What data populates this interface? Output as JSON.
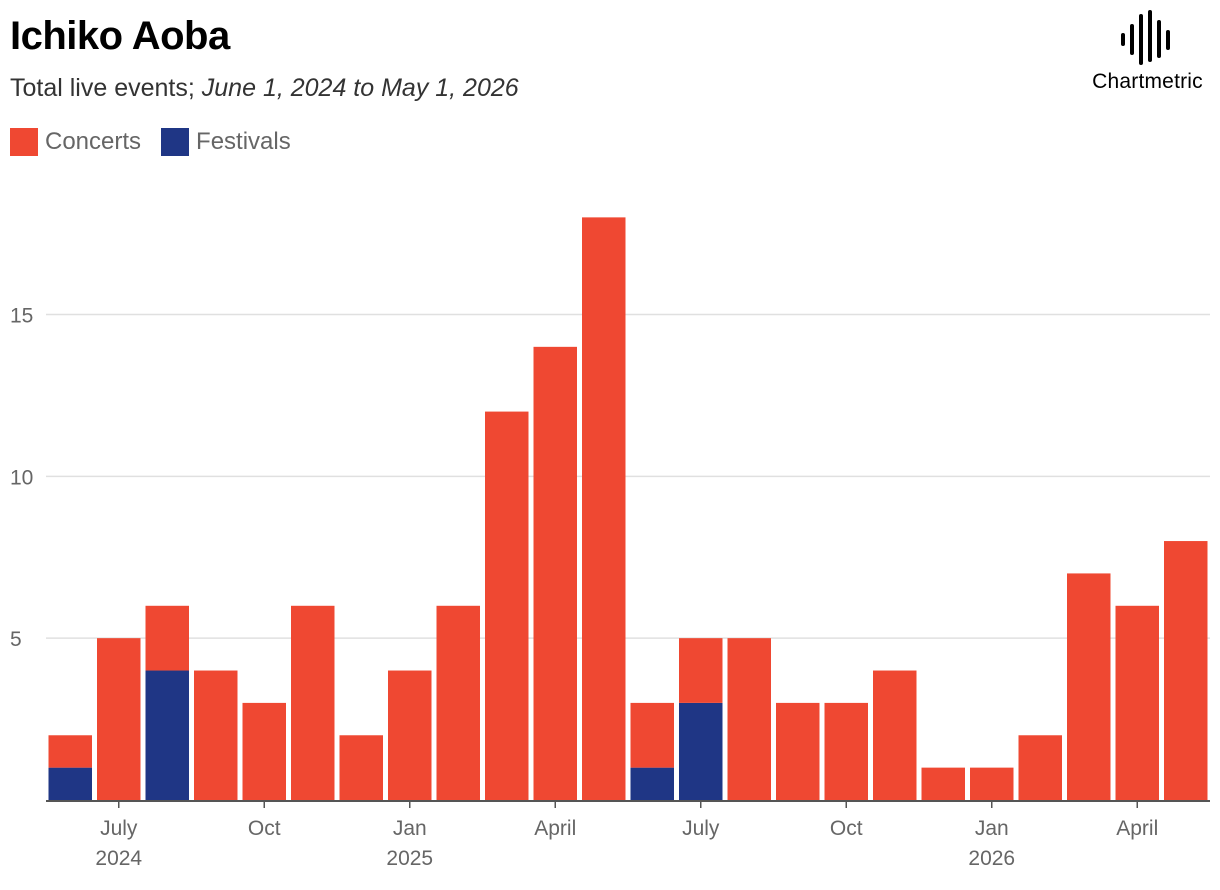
{
  "chart_data": {
    "type": "bar",
    "stacked": true,
    "title": "Ichiko Aoba",
    "subtitle_prefix": "Total live events;",
    "subtitle_range": "June 1, 2024 to May 1, 2026",
    "categories": [
      "Jun 2024",
      "Jul 2024",
      "Aug 2024",
      "Sep 2024",
      "Oct 2024",
      "Nov 2024",
      "Dec 2024",
      "Jan 2025",
      "Feb 2025",
      "Mar 2025",
      "Apr 2025",
      "May 2025",
      "Jun 2025",
      "Jul 2025",
      "Aug 2025",
      "Sep 2025",
      "Oct 2025",
      "Nov 2025",
      "Dec 2025",
      "Jan 2026",
      "Feb 2026",
      "Mar 2026",
      "Apr 2026",
      "May 2026"
    ],
    "series": [
      {
        "name": "Festivals",
        "color": "#1f3685",
        "values": [
          1,
          0,
          4,
          0,
          0,
          0,
          0,
          0,
          0,
          0,
          0,
          0,
          1,
          3,
          0,
          0,
          0,
          0,
          0,
          0,
          0,
          0,
          0,
          0
        ]
      },
      {
        "name": "Concerts",
        "color": "#ef4832",
        "values": [
          1,
          5,
          2,
          4,
          3,
          6,
          2,
          4,
          6,
          12,
          14,
          18,
          2,
          2,
          5,
          3,
          3,
          4,
          1,
          1,
          2,
          7,
          6,
          8
        ]
      }
    ],
    "legend": [
      {
        "name": "Concerts",
        "color": "#ef4832"
      },
      {
        "name": "Festivals",
        "color": "#1f3685"
      }
    ],
    "ylim": [
      0,
      19
    ],
    "y_ticks": [
      5,
      10,
      15
    ],
    "x_ticks": [
      {
        "index": 1,
        "month": "July",
        "year": "2024"
      },
      {
        "index": 4,
        "month": "Oct",
        "year": ""
      },
      {
        "index": 7,
        "month": "Jan",
        "year": "2025"
      },
      {
        "index": 10,
        "month": "April",
        "year": ""
      },
      {
        "index": 13,
        "month": "July",
        "year": ""
      },
      {
        "index": 16,
        "month": "Oct",
        "year": ""
      },
      {
        "index": 19,
        "month": "Jan",
        "year": "2026"
      },
      {
        "index": 22,
        "month": "April",
        "year": ""
      }
    ],
    "grid": true,
    "legend_position": "top-left"
  },
  "brand": {
    "name": "Chartmetric",
    "icon": "soundwave-icon"
  },
  "colors": {
    "grid": "#e0e0e0",
    "axis": "#555555",
    "text": "#666666"
  }
}
